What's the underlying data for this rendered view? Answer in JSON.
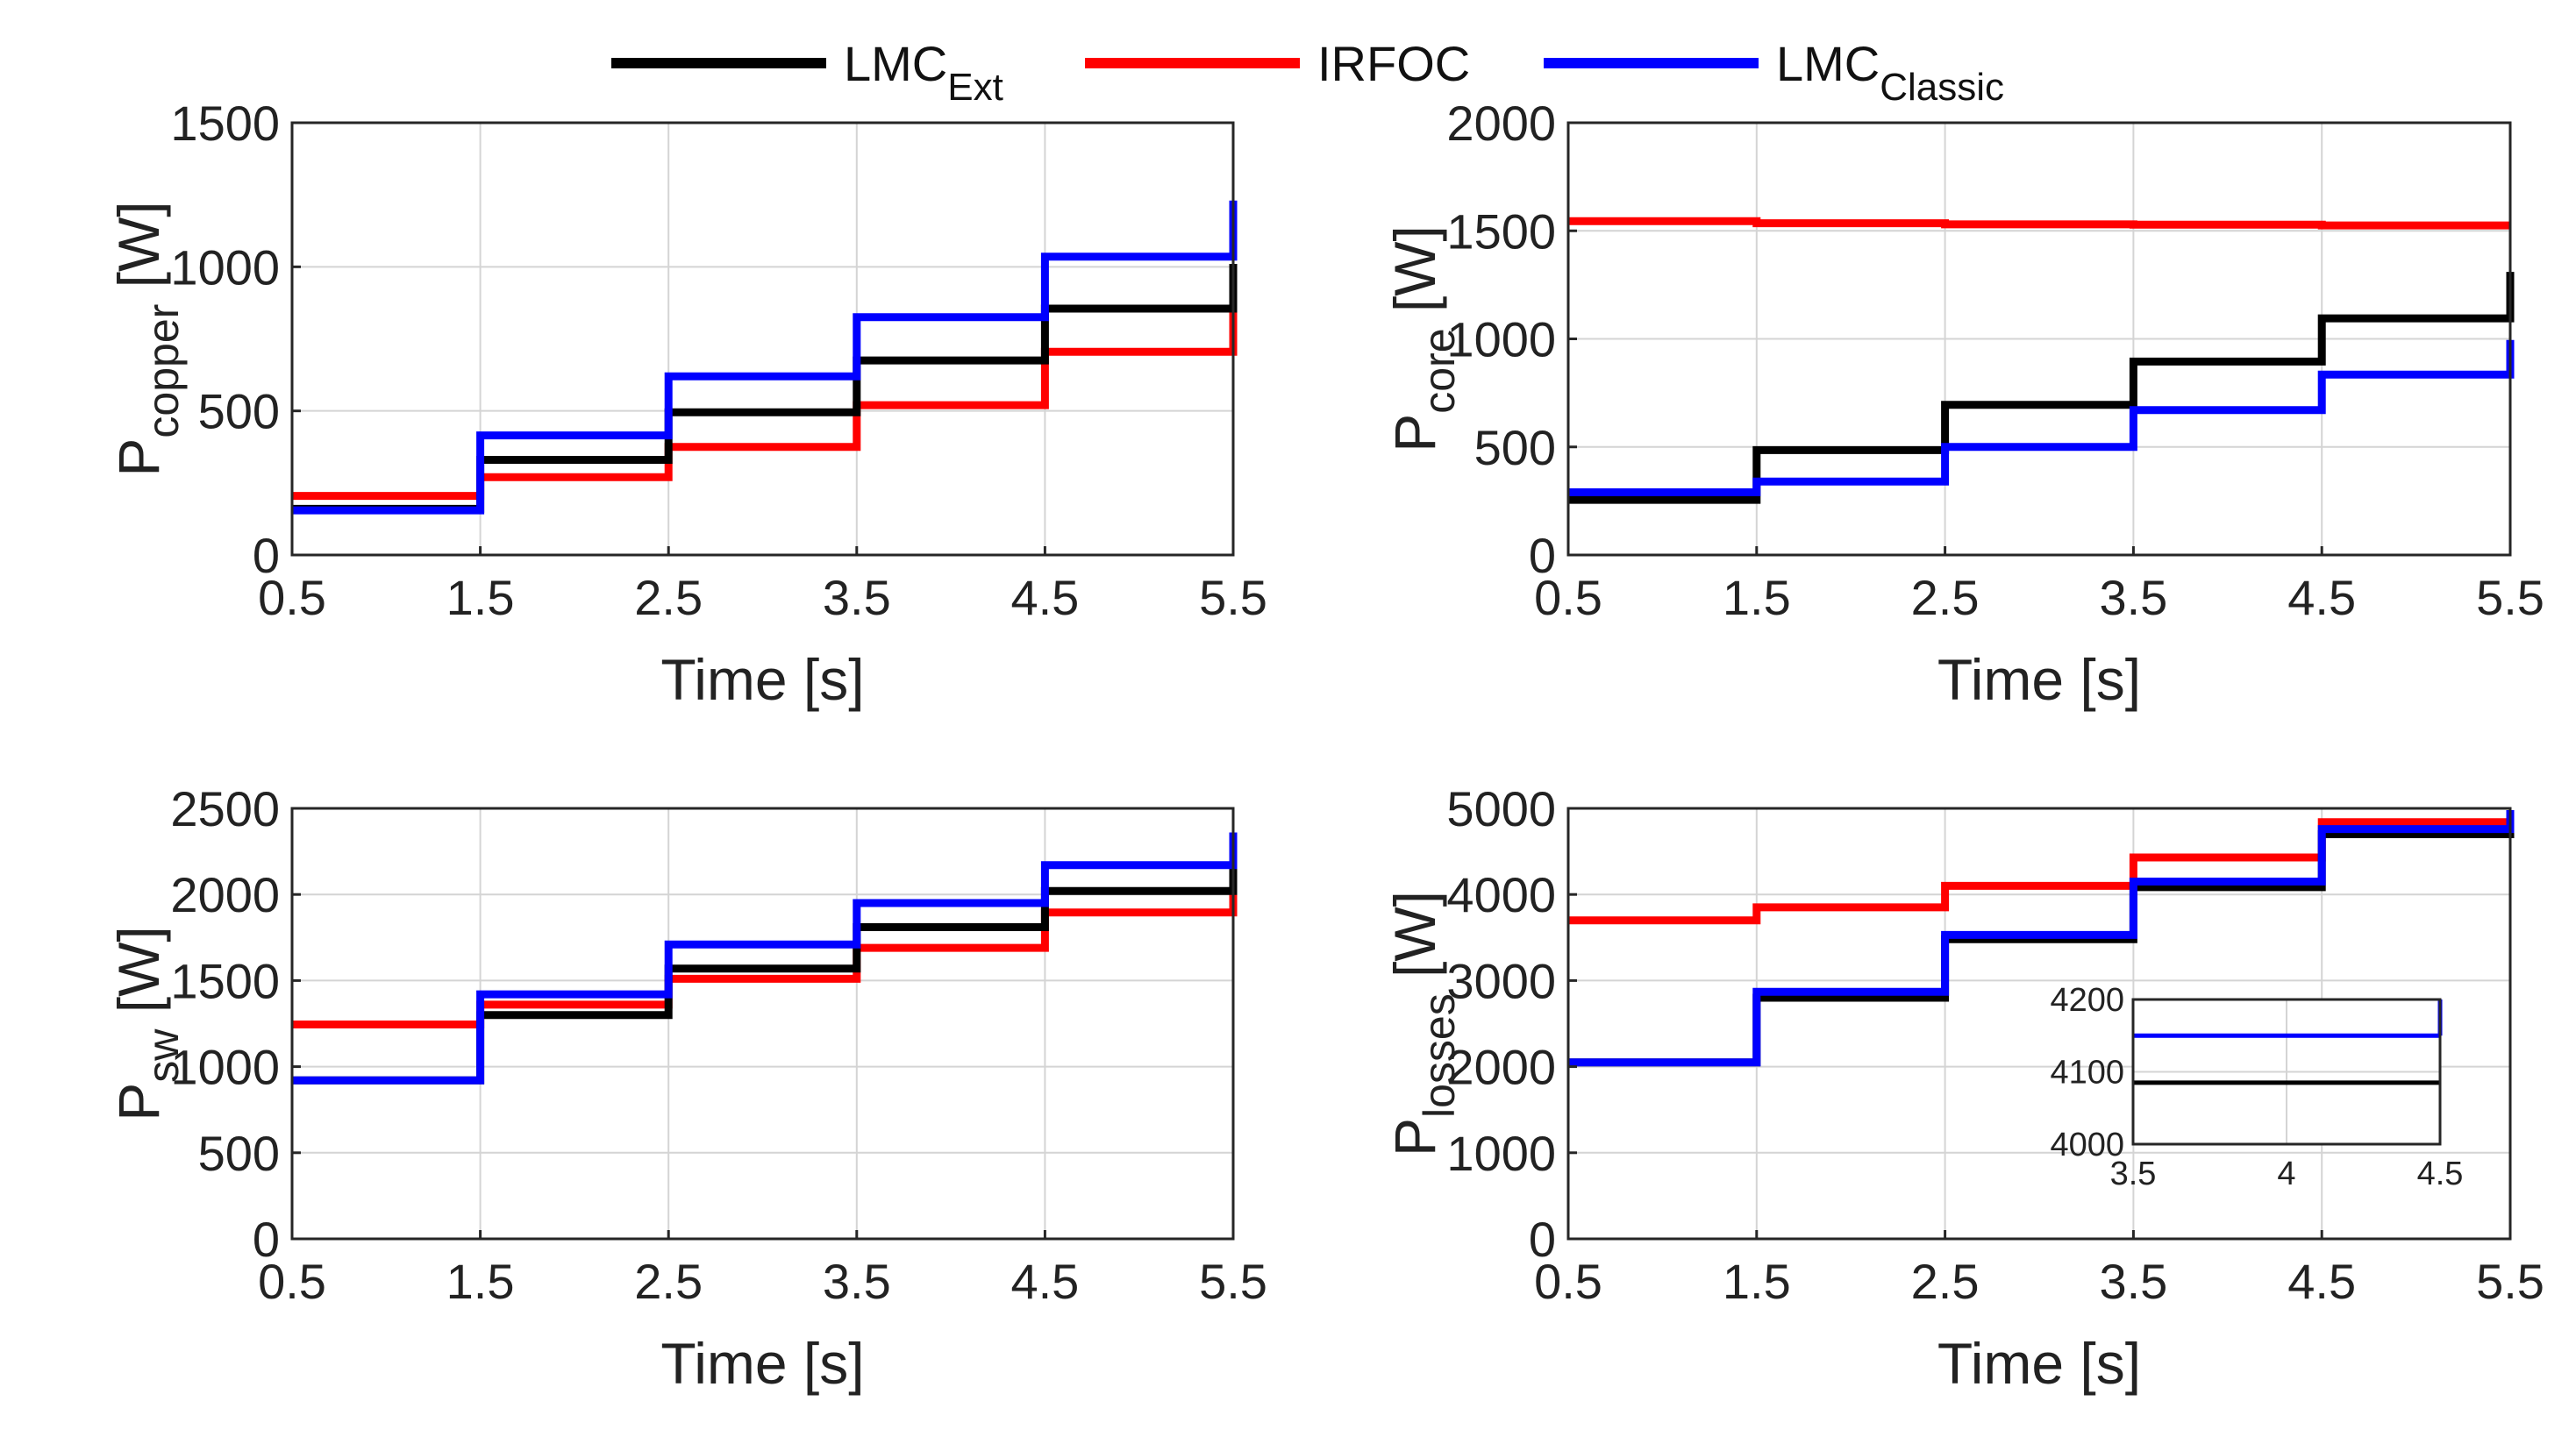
{
  "legend": [
    {
      "name": "LMC",
      "sub": "Ext",
      "color": "#000000"
    },
    {
      "name": "IRFOC",
      "sub": "",
      "color": "#ff0000"
    },
    {
      "name": "LMC",
      "sub": "Classic",
      "color": "#0000ff"
    }
  ],
  "chart_data": [
    {
      "type": "line",
      "xlabel": "Time [s]",
      "ylabel_main": "P",
      "ylabel_sub": "copper",
      "ylabel_unit": "[W]",
      "xlim": [
        0.5,
        5.5
      ],
      "ylim": [
        0,
        1500
      ],
      "xticks": [
        "0.5",
        "1.5",
        "2.5",
        "3.5",
        "4.5",
        "5.5"
      ],
      "yticks": [
        "0",
        "500",
        "1000",
        "1500"
      ],
      "grid": true,
      "steps_x": [
        0.5,
        1.5,
        2.5,
        3.5,
        4.5,
        5.5
      ],
      "series": [
        {
          "name": "IRFOC",
          "color": "#ff0000",
          "values": [
            205,
            270,
            375,
            520,
            705
          ],
          "end_value": 930
        },
        {
          "name": "LMC_Ext",
          "color": "#000000",
          "values": [
            160,
            330,
            495,
            675,
            855
          ],
          "end_value": 1010
        },
        {
          "name": "LMC_Classic",
          "color": "#0000ff",
          "values": [
            155,
            415,
            620,
            825,
            1035
          ],
          "end_value": 1230
        }
      ]
    },
    {
      "type": "line",
      "xlabel": "Time [s]",
      "ylabel_main": "P",
      "ylabel_sub": "core",
      "ylabel_unit": "[W]",
      "xlim": [
        0.5,
        5.5
      ],
      "ylim": [
        0,
        2000
      ],
      "xticks": [
        "0.5",
        "1.5",
        "2.5",
        "3.5",
        "4.5",
        "5.5"
      ],
      "yticks": [
        "0",
        "500",
        "1000",
        "1500",
        "2000"
      ],
      "grid": true,
      "steps_x": [
        0.5,
        1.5,
        2.5,
        3.5,
        4.5,
        5.5
      ],
      "series": [
        {
          "name": "IRFOC",
          "color": "#ff0000",
          "values": [
            1545,
            1535,
            1530,
            1528,
            1525
          ],
          "end_value": 1525
        },
        {
          "name": "LMC_Ext",
          "color": "#000000",
          "values": [
            255,
            485,
            695,
            895,
            1095
          ],
          "end_value": 1310
        },
        {
          "name": "LMC_Classic",
          "color": "#0000ff",
          "values": [
            290,
            340,
            500,
            670,
            835
          ],
          "end_value": 995
        }
      ]
    },
    {
      "type": "line",
      "xlabel": "Time [s]",
      "ylabel_main": "P",
      "ylabel_sub": "sw",
      "ylabel_unit": "[W]",
      "xlim": [
        0.5,
        5.5
      ],
      "ylim": [
        0,
        2500
      ],
      "xticks": [
        "0.5",
        "1.5",
        "2.5",
        "3.5",
        "4.5",
        "5.5"
      ],
      "yticks": [
        "0",
        "500",
        "1000",
        "1500",
        "2000",
        "2500"
      ],
      "grid": true,
      "steps_x": [
        0.5,
        1.5,
        2.5,
        3.5,
        4.5,
        5.5
      ],
      "series": [
        {
          "name": "IRFOC",
          "color": "#ff0000",
          "values": [
            1245,
            1360,
            1510,
            1690,
            1895
          ],
          "end_value": 2120
        },
        {
          "name": "LMC_Ext",
          "color": "#000000",
          "values": [
            920,
            1300,
            1570,
            1810,
            2020
          ],
          "end_value": 2250
        },
        {
          "name": "LMC_Classic",
          "color": "#0000ff",
          "values": [
            920,
            1420,
            1710,
            1950,
            2170
          ],
          "end_value": 2360
        }
      ]
    },
    {
      "type": "line",
      "xlabel": "Time [s]",
      "ylabel_main": "P",
      "ylabel_sub": "losses",
      "ylabel_unit": "[W]",
      "xlim": [
        0.5,
        5.5
      ],
      "ylim": [
        0,
        5000
      ],
      "xticks": [
        "0.5",
        "1.5",
        "2.5",
        "3.5",
        "4.5",
        "5.5"
      ],
      "yticks": [
        "0",
        "1000",
        "2000",
        "3000",
        "4000",
        "5000"
      ],
      "grid": true,
      "steps_x": [
        0.5,
        1.5,
        2.5,
        3.5,
        4.5,
        5.5
      ],
      "series": [
        {
          "name": "IRFOC",
          "color": "#ff0000",
          "values": [
            3700,
            3850,
            4100,
            4430,
            4840
          ],
          "end_value": 4900
        },
        {
          "name": "LMC_Ext",
          "color": "#000000",
          "values": [
            2050,
            2800,
            3480,
            4085,
            4700
          ],
          "end_value": 4900
        },
        {
          "name": "LMC_Classic",
          "color": "#0000ff",
          "values": [
            2050,
            2870,
            3530,
            4150,
            4760
          ],
          "end_value": 4980
        }
      ],
      "inset": {
        "xlim": [
          3.5,
          4.5
        ],
        "ylim": [
          4000,
          4200
        ],
        "xticks": [
          "3.5",
          "4",
          "4.5"
        ],
        "yticks": [
          "4000",
          "4100",
          "4200"
        ],
        "series": [
          {
            "name": "LMC_Ext",
            "color": "#000000",
            "value": 4085
          },
          {
            "name": "LMC_Classic",
            "color": "#0000ff",
            "value": 4150
          }
        ]
      }
    }
  ]
}
